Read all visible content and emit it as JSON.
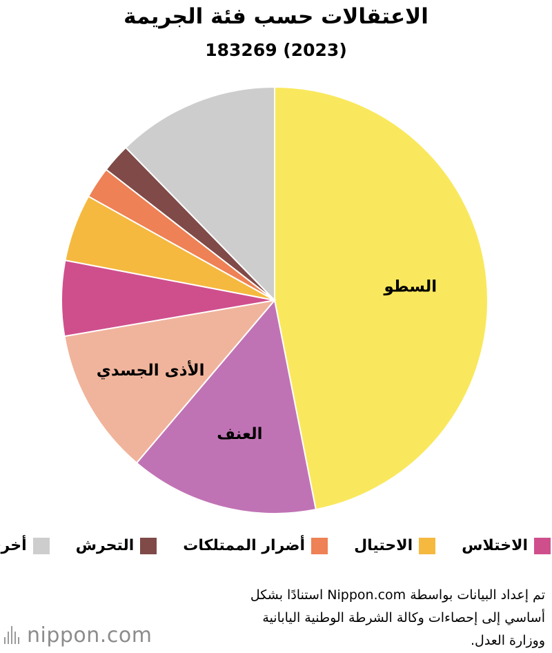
{
  "title": "الاعتقالات حسب فئة الجريمة",
  "subtitle": "183269 (2023)",
  "colors": {
    "theft": "#f9e85d",
    "violence": "#c073b4",
    "bodily_harm": "#f0b49c",
    "embezzlement": "#cf4f8d",
    "fraud": "#f5b93f",
    "property_damage": "#ee8155",
    "harassment": "#7f4a48",
    "other": "#cdcdcd"
  },
  "chart_data": {
    "type": "pie",
    "start_angle_deg": 0,
    "direction": "clockwise",
    "slices": [
      {
        "key": "theft",
        "label": "السطو",
        "value": 46.9,
        "color": "#f9e85d",
        "show_label": true
      },
      {
        "key": "violence",
        "label": "العنف",
        "value": 14.3,
        "color": "#c073b4",
        "show_label": true
      },
      {
        "key": "bodily_harm",
        "label": "الأذى الجسدي",
        "value": 11.1,
        "color": "#f0b49c",
        "show_label": true
      },
      {
        "key": "embezzlement",
        "label": "الاختلاس",
        "value": 5.7,
        "color": "#cf4f8d",
        "show_label": false
      },
      {
        "key": "fraud",
        "label": "الاحتيال",
        "value": 5.1,
        "color": "#f5b93f",
        "show_label": false
      },
      {
        "key": "property_damage",
        "label": "أضرار الممتلكات",
        "value": 2.4,
        "color": "#ee8155",
        "show_label": false
      },
      {
        "key": "harassment",
        "label": "التحرش",
        "value": 2.2,
        "color": "#7f4a48",
        "show_label": false
      },
      {
        "key": "other",
        "label": "أخرى",
        "value": 12.3,
        "color": "#cdcdcd",
        "show_label": false
      }
    ]
  },
  "legend": [
    {
      "label": "الاختلاس",
      "color": "#cf4f8d"
    },
    {
      "label": "الاحتيال",
      "color": "#f5b93f"
    },
    {
      "label": "أضرار الممتلكات",
      "color": "#ee8155"
    },
    {
      "label": "التحرش",
      "color": "#7f4a48"
    },
    {
      "label": "أخرى",
      "color": "#cdcdcd"
    }
  ],
  "source": {
    "line1": "تم إعداد البيانات بواسطة Nippon.com استنادًا بشكل",
    "line2": "أساسي إلى إحصاءات وكالة الشرطة الوطنية اليابانية",
    "line3": "ووزارة العدل."
  },
  "logo": {
    "text": "nippon.com"
  }
}
